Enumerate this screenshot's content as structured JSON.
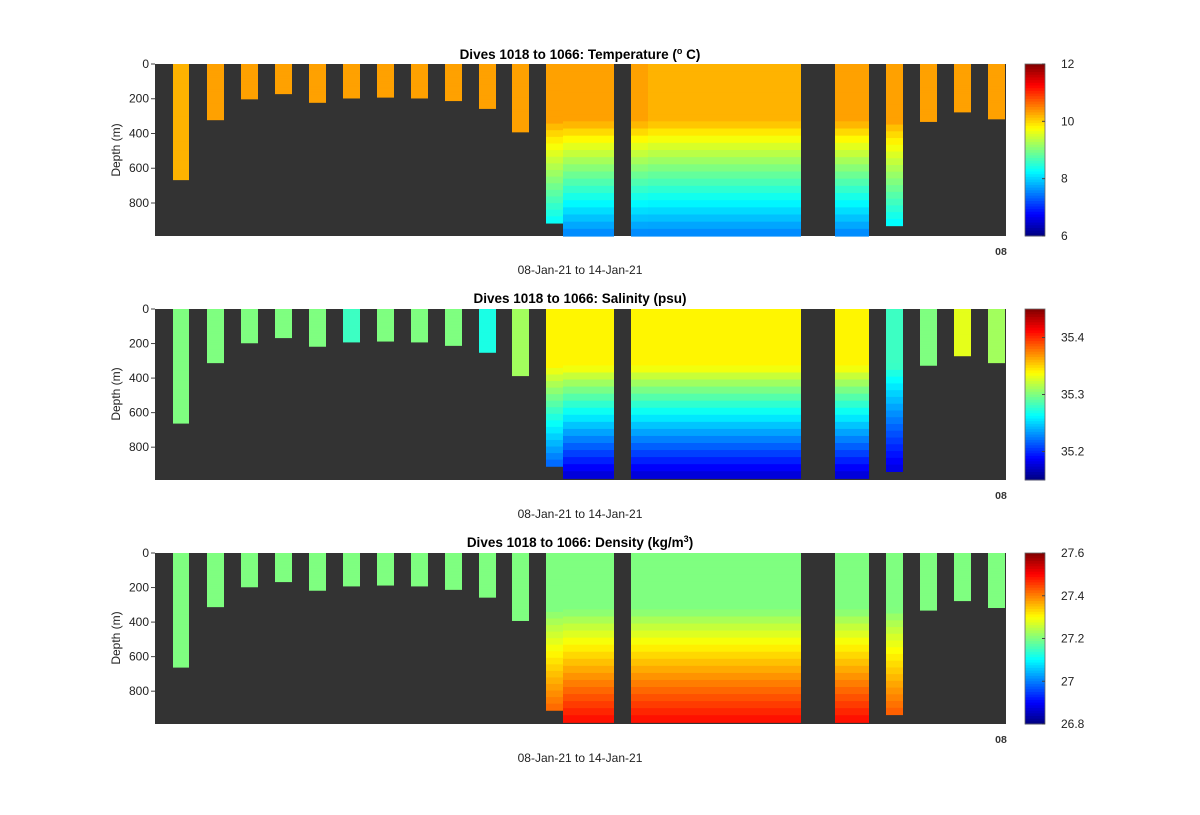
{
  "figure": {
    "time_label": "08-Jan-21 to 14-Jan-21",
    "corner_label": "08",
    "ylabel": "Depth (m)"
  },
  "chart_data": [
    {
      "type": "heatmap",
      "variable": "temperature",
      "title_prefix": "Dives 1018 to 1066: Temperature (",
      "title_sup": "o",
      "title_suffix": " C)",
      "xlabel": "08-Jan-21 to 14-Jan-21",
      "ylabel": "Depth (m)",
      "yticks": [
        0,
        200,
        400,
        600,
        800
      ],
      "ylim": [
        0,
        990
      ],
      "y_reversed": true,
      "colormap": "jet",
      "background_color": "#333333",
      "colorbar": {
        "ticks": [
          "6",
          "8",
          "10",
          "12"
        ],
        "range": [
          6,
          12
        ]
      },
      "profiles": [
        {
          "max_depth": 665,
          "surface": 10.2,
          "deep": 10.2
        },
        {
          "max_depth": 320,
          "surface": 10.3,
          "deep": 10.3
        },
        {
          "max_depth": 200,
          "surface": 10.3,
          "deep": 10.3
        },
        {
          "max_depth": 170,
          "surface": 10.3,
          "deep": 10.3
        },
        {
          "max_depth": 220,
          "surface": 10.3,
          "deep": 10.3
        },
        {
          "max_depth": 195,
          "surface": 10.3,
          "deep": 10.3
        },
        {
          "max_depth": 190,
          "surface": 10.3,
          "deep": 10.3
        },
        {
          "max_depth": 195,
          "surface": 10.3,
          "deep": 10.3
        },
        {
          "max_depth": 210,
          "surface": 10.3,
          "deep": 10.3
        },
        {
          "max_depth": 255,
          "surface": 10.3,
          "deep": 10.3
        },
        {
          "max_depth": 390,
          "surface": 10.3,
          "deep": 10.3
        },
        {
          "max_depth": 915,
          "surface": 10.3,
          "deep": 8.0
        },
        {
          "max_depth": 990,
          "surface": 10.3,
          "deep": 7.5
        },
        {
          "max_depth": 990,
          "surface": 10.3,
          "deep": 7.5
        },
        {
          "max_depth": 990,
          "surface": 10.3,
          "deep": 7.5
        },
        {
          "max_depth": 990,
          "surface": 10.3,
          "deep": 7.5
        },
        {
          "max_depth": 990,
          "surface": 10.2,
          "deep": 7.5
        },
        {
          "max_depth": 990,
          "surface": 10.2,
          "deep": 7.5
        },
        {
          "max_depth": 990,
          "surface": 10.2,
          "deep": 7.5
        },
        {
          "max_depth": 990,
          "surface": 10.2,
          "deep": 7.5
        },
        {
          "max_depth": 990,
          "surface": 10.2,
          "deep": 7.5
        },
        {
          "max_depth": 990,
          "surface": 10.2,
          "deep": 7.5
        },
        {
          "max_depth": 990,
          "surface": 10.2,
          "deep": 7.5
        },
        {
          "max_depth": 990,
          "surface": 10.2,
          "deep": 7.5
        },
        {
          "max_depth": 990,
          "surface": 10.2,
          "deep": 7.5
        },
        {
          "max_depth": 990,
          "surface": 10.2,
          "deep": 7.5
        },
        {
          "max_depth": 990,
          "surface": 10.2,
          "deep": 7.5
        },
        {
          "max_depth": 990,
          "surface": 10.2,
          "deep": 7.5
        },
        {
          "max_depth": 990,
          "surface": 10.2,
          "deep": 7.5
        },
        {
          "max_depth": 990,
          "surface": 10.2,
          "deep": 7.5
        },
        {
          "max_depth": 990,
          "surface": 10.3,
          "deep": 7.5
        },
        {
          "max_depth": 990,
          "surface": 10.3,
          "deep": 7.5
        },
        {
          "max_depth": 930,
          "surface": 10.3,
          "deep": 8.0
        },
        {
          "max_depth": 330,
          "surface": 10.3,
          "deep": 10.3
        },
        {
          "max_depth": 275,
          "surface": 10.3,
          "deep": 10.3
        },
        {
          "max_depth": 315,
          "surface": 10.3,
          "deep": 10.3
        }
      ]
    },
    {
      "type": "heatmap",
      "variable": "salinity",
      "title_prefix": "Dives 1018 to 1066: Salinity (psu)",
      "title_sup": "",
      "title_suffix": "",
      "xlabel": "08-Jan-21 to 14-Jan-21",
      "ylabel": "Depth (m)",
      "yticks": [
        0,
        200,
        400,
        600,
        800
      ],
      "ylim": [
        0,
        990
      ],
      "y_reversed": true,
      "colormap": "jet",
      "background_color": "#333333",
      "colorbar": {
        "ticks": [
          "35.2",
          "35.3",
          "35.4"
        ],
        "range": [
          35.15,
          35.45
        ]
      },
      "profiles": [
        {
          "max_depth": 660,
          "surface": 35.3,
          "deep": 35.3
        },
        {
          "max_depth": 310,
          "surface": 35.3,
          "deep": 35.3
        },
        {
          "max_depth": 195,
          "surface": 35.3,
          "deep": 35.3
        },
        {
          "max_depth": 165,
          "surface": 35.3,
          "deep": 35.3
        },
        {
          "max_depth": 215,
          "surface": 35.3,
          "deep": 35.3
        },
        {
          "max_depth": 190,
          "surface": 35.28,
          "deep": 35.28
        },
        {
          "max_depth": 185,
          "surface": 35.3,
          "deep": 35.3
        },
        {
          "max_depth": 190,
          "surface": 35.3,
          "deep": 35.3
        },
        {
          "max_depth": 210,
          "surface": 35.3,
          "deep": 35.3
        },
        {
          "max_depth": 250,
          "surface": 35.27,
          "deep": 35.27
        },
        {
          "max_depth": 385,
          "surface": 35.31,
          "deep": 35.31
        },
        {
          "max_depth": 910,
          "surface": 35.34,
          "deep": 35.2
        },
        {
          "max_depth": 980,
          "surface": 35.34,
          "deep": 35.17
        },
        {
          "max_depth": 980,
          "surface": 35.34,
          "deep": 35.17
        },
        {
          "max_depth": 980,
          "surface": 35.34,
          "deep": 35.17
        },
        {
          "max_depth": 980,
          "surface": 35.34,
          "deep": 35.17
        },
        {
          "max_depth": 980,
          "surface": 35.34,
          "deep": 35.17
        },
        {
          "max_depth": 980,
          "surface": 35.34,
          "deep": 35.17
        },
        {
          "max_depth": 980,
          "surface": 35.34,
          "deep": 35.17
        },
        {
          "max_depth": 980,
          "surface": 35.34,
          "deep": 35.17
        },
        {
          "max_depth": 980,
          "surface": 35.34,
          "deep": 35.17
        },
        {
          "max_depth": 980,
          "surface": 35.34,
          "deep": 35.17
        },
        {
          "max_depth": 980,
          "surface": 35.34,
          "deep": 35.17
        },
        {
          "max_depth": 980,
          "surface": 35.34,
          "deep": 35.17
        },
        {
          "max_depth": 980,
          "surface": 35.34,
          "deep": 35.17
        },
        {
          "max_depth": 980,
          "surface": 35.34,
          "deep": 35.17
        },
        {
          "max_depth": 980,
          "surface": 35.34,
          "deep": 35.17
        },
        {
          "max_depth": 980,
          "surface": 35.34,
          "deep": 35.17
        },
        {
          "max_depth": 980,
          "surface": 35.34,
          "deep": 35.17
        },
        {
          "max_depth": 980,
          "surface": 35.34,
          "deep": 35.17
        },
        {
          "max_depth": 980,
          "surface": 35.34,
          "deep": 35.17
        },
        {
          "max_depth": 980,
          "surface": 35.34,
          "deep": 35.17
        },
        {
          "max_depth": 940,
          "surface": 35.28,
          "deep": 35.17
        },
        {
          "max_depth": 325,
          "surface": 35.3,
          "deep": 35.3
        },
        {
          "max_depth": 270,
          "surface": 35.33,
          "deep": 35.33
        },
        {
          "max_depth": 310,
          "surface": 35.31,
          "deep": 35.31
        }
      ]
    },
    {
      "type": "heatmap",
      "variable": "density",
      "title_prefix": "Dives 1018 to 1066: Density (kg/m",
      "title_sup": "3",
      "title_suffix": ")",
      "xlabel": "08-Jan-21 to 14-Jan-21",
      "ylabel": "Depth (m)",
      "yticks": [
        0,
        200,
        400,
        600,
        800
      ],
      "ylim": [
        0,
        990
      ],
      "y_reversed": true,
      "colormap": "jet",
      "background_color": "#333333",
      "colorbar": {
        "ticks": [
          "26.8",
          "27",
          "27.2",
          "27.4",
          "27.6"
        ],
        "range": [
          26.8,
          27.6
        ]
      },
      "profiles": [
        {
          "max_depth": 660,
          "surface": 27.2,
          "deep": 27.2
        },
        {
          "max_depth": 310,
          "surface": 27.2,
          "deep": 27.2
        },
        {
          "max_depth": 195,
          "surface": 27.2,
          "deep": 27.2
        },
        {
          "max_depth": 165,
          "surface": 27.2,
          "deep": 27.2
        },
        {
          "max_depth": 215,
          "surface": 27.2,
          "deep": 27.2
        },
        {
          "max_depth": 190,
          "surface": 27.2,
          "deep": 27.2
        },
        {
          "max_depth": 185,
          "surface": 27.2,
          "deep": 27.2
        },
        {
          "max_depth": 190,
          "surface": 27.2,
          "deep": 27.2
        },
        {
          "max_depth": 210,
          "surface": 27.2,
          "deep": 27.2
        },
        {
          "max_depth": 255,
          "surface": 27.2,
          "deep": 27.2
        },
        {
          "max_depth": 390,
          "surface": 27.2,
          "deep": 27.2
        },
        {
          "max_depth": 910,
          "surface": 27.2,
          "deep": 27.45
        },
        {
          "max_depth": 980,
          "surface": 27.2,
          "deep": 27.5
        },
        {
          "max_depth": 980,
          "surface": 27.2,
          "deep": 27.5
        },
        {
          "max_depth": 980,
          "surface": 27.2,
          "deep": 27.5
        },
        {
          "max_depth": 980,
          "surface": 27.2,
          "deep": 27.5
        },
        {
          "max_depth": 980,
          "surface": 27.2,
          "deep": 27.5
        },
        {
          "max_depth": 980,
          "surface": 27.2,
          "deep": 27.5
        },
        {
          "max_depth": 980,
          "surface": 27.2,
          "deep": 27.5
        },
        {
          "max_depth": 980,
          "surface": 27.2,
          "deep": 27.5
        },
        {
          "max_depth": 980,
          "surface": 27.2,
          "deep": 27.5
        },
        {
          "max_depth": 980,
          "surface": 27.2,
          "deep": 27.5
        },
        {
          "max_depth": 980,
          "surface": 27.2,
          "deep": 27.5
        },
        {
          "max_depth": 980,
          "surface": 27.2,
          "deep": 27.5
        },
        {
          "max_depth": 980,
          "surface": 27.2,
          "deep": 27.5
        },
        {
          "max_depth": 980,
          "surface": 27.2,
          "deep": 27.5
        },
        {
          "max_depth": 980,
          "surface": 27.2,
          "deep": 27.5
        },
        {
          "max_depth": 980,
          "surface": 27.2,
          "deep": 27.5
        },
        {
          "max_depth": 980,
          "surface": 27.2,
          "deep": 27.5
        },
        {
          "max_depth": 980,
          "surface": 27.2,
          "deep": 27.5
        },
        {
          "max_depth": 980,
          "surface": 27.2,
          "deep": 27.5
        },
        {
          "max_depth": 980,
          "surface": 27.2,
          "deep": 27.5
        },
        {
          "max_depth": 935,
          "surface": 27.2,
          "deep": 27.45
        },
        {
          "max_depth": 330,
          "surface": 27.2,
          "deep": 27.2
        },
        {
          "max_depth": 275,
          "surface": 27.2,
          "deep": 27.2
        },
        {
          "max_depth": 315,
          "surface": 27.2,
          "deep": 27.2
        }
      ]
    }
  ]
}
